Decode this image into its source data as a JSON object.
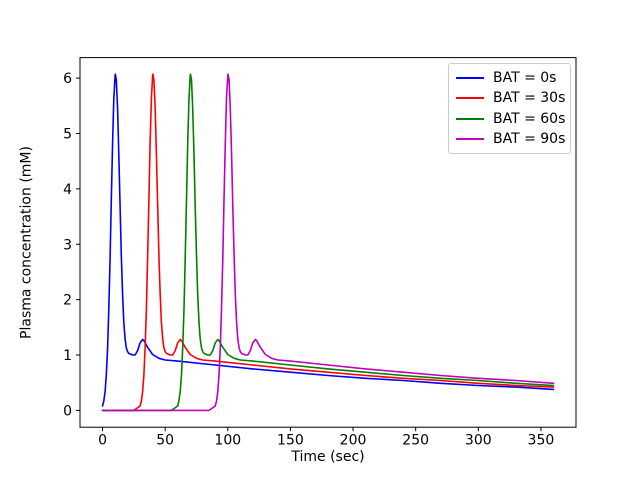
{
  "chart_data": {
    "type": "line",
    "title": "",
    "xlabel": "Time (sec)",
    "ylabel": "Plasma concentration (mM)",
    "xlim": [
      -18,
      378
    ],
    "ylim": [
      -0.3034,
      6.3704
    ],
    "xticks": [
      0,
      50,
      100,
      150,
      200,
      250,
      300,
      350
    ],
    "yticks": [
      0,
      1,
      2,
      3,
      4,
      5,
      6
    ],
    "grid": false,
    "legend": {
      "location": "upper right",
      "border_color": "#cccccc"
    },
    "axis_color": "#000000",
    "background": "#ffffff",
    "series": [
      {
        "name": "BAT = 0s",
        "color": "#0000ff",
        "shift_s": 0,
        "points": [
          [
            0,
            0.08
          ],
          [
            1,
            0.17
          ],
          [
            2,
            0.34
          ],
          [
            3,
            0.64
          ],
          [
            4,
            1.13
          ],
          [
            5,
            1.83
          ],
          [
            6,
            2.75
          ],
          [
            7,
            3.8
          ],
          [
            8,
            4.83
          ],
          [
            9,
            5.63
          ],
          [
            10,
            6.04
          ],
          [
            10.2,
            6.07
          ],
          [
            11,
            5.97
          ],
          [
            12,
            5.45
          ],
          [
            13,
            4.62
          ],
          [
            14,
            3.68
          ],
          [
            15,
            2.8
          ],
          [
            16,
            2.09
          ],
          [
            17,
            1.59
          ],
          [
            18,
            1.29
          ],
          [
            19,
            1.13
          ],
          [
            20,
            1.06
          ],
          [
            21,
            1.03
          ],
          [
            22,
            1.02
          ],
          [
            24,
            1.0
          ],
          [
            26,
            1.0
          ],
          [
            28,
            1.08
          ],
          [
            30,
            1.22
          ],
          [
            32,
            1.28
          ],
          [
            33,
            1.26
          ],
          [
            36,
            1.14
          ],
          [
            40,
            1.01
          ],
          [
            45,
            0.94
          ],
          [
            50,
            0.91
          ],
          [
            60,
            0.89
          ],
          [
            90,
            0.82
          ],
          [
            120,
            0.75
          ],
          [
            150,
            0.69
          ],
          [
            180,
            0.63
          ],
          [
            210,
            0.58
          ],
          [
            240,
            0.54
          ],
          [
            270,
            0.49
          ],
          [
            300,
            0.45
          ],
          [
            330,
            0.42
          ],
          [
            360,
            0.38
          ]
        ]
      },
      {
        "name": "BAT = 30s",
        "color": "#ff0000",
        "shift_s": 30,
        "points": [
          [
            0,
            0
          ],
          [
            25,
            0
          ],
          [
            30,
            0.08
          ],
          [
            31,
            0.17
          ],
          [
            32,
            0.34
          ],
          [
            33,
            0.64
          ],
          [
            34,
            1.13
          ],
          [
            35,
            1.83
          ],
          [
            36,
            2.75
          ],
          [
            37,
            3.8
          ],
          [
            38,
            4.83
          ],
          [
            39,
            5.63
          ],
          [
            40,
            6.04
          ],
          [
            40.2,
            6.07
          ],
          [
            41,
            5.97
          ],
          [
            42,
            5.45
          ],
          [
            43,
            4.62
          ],
          [
            44,
            3.68
          ],
          [
            45,
            2.8
          ],
          [
            46,
            2.09
          ],
          [
            47,
            1.59
          ],
          [
            48,
            1.29
          ],
          [
            49,
            1.13
          ],
          [
            50,
            1.06
          ],
          [
            51,
            1.03
          ],
          [
            52,
            1.02
          ],
          [
            54,
            1.0
          ],
          [
            56,
            1.0
          ],
          [
            58,
            1.08
          ],
          [
            60,
            1.22
          ],
          [
            62,
            1.28
          ],
          [
            63,
            1.26
          ],
          [
            66,
            1.14
          ],
          [
            70,
            1.01
          ],
          [
            75,
            0.94
          ],
          [
            80,
            0.91
          ],
          [
            90,
            0.89
          ],
          [
            120,
            0.82
          ],
          [
            150,
            0.75
          ],
          [
            180,
            0.69
          ],
          [
            210,
            0.63
          ],
          [
            240,
            0.58
          ],
          [
            270,
            0.54
          ],
          [
            300,
            0.49
          ],
          [
            330,
            0.45
          ],
          [
            360,
            0.42
          ]
        ]
      },
      {
        "name": "BAT = 60s",
        "color": "#008000",
        "shift_s": 60,
        "points": [
          [
            0,
            0
          ],
          [
            55,
            0
          ],
          [
            60,
            0.08
          ],
          [
            61,
            0.17
          ],
          [
            62,
            0.34
          ],
          [
            63,
            0.64
          ],
          [
            64,
            1.13
          ],
          [
            65,
            1.83
          ],
          [
            66,
            2.75
          ],
          [
            67,
            3.8
          ],
          [
            68,
            4.83
          ],
          [
            69,
            5.63
          ],
          [
            70,
            6.04
          ],
          [
            70.2,
            6.07
          ],
          [
            71,
            5.97
          ],
          [
            72,
            5.45
          ],
          [
            73,
            4.62
          ],
          [
            74,
            3.68
          ],
          [
            75,
            2.8
          ],
          [
            76,
            2.09
          ],
          [
            77,
            1.59
          ],
          [
            78,
            1.29
          ],
          [
            79,
            1.13
          ],
          [
            80,
            1.06
          ],
          [
            81,
            1.03
          ],
          [
            82,
            1.02
          ],
          [
            84,
            1.0
          ],
          [
            86,
            1.0
          ],
          [
            88,
            1.08
          ],
          [
            90,
            1.22
          ],
          [
            92,
            1.28
          ],
          [
            93,
            1.26
          ],
          [
            96,
            1.14
          ],
          [
            100,
            1.01
          ],
          [
            105,
            0.94
          ],
          [
            110,
            0.91
          ],
          [
            120,
            0.89
          ],
          [
            150,
            0.82
          ],
          [
            180,
            0.75
          ],
          [
            210,
            0.69
          ],
          [
            240,
            0.63
          ],
          [
            270,
            0.58
          ],
          [
            300,
            0.54
          ],
          [
            330,
            0.49
          ],
          [
            360,
            0.45
          ]
        ]
      },
      {
        "name": "BAT = 90s",
        "color": "#bf00bf",
        "shift_s": 90,
        "points": [
          [
            0,
            0
          ],
          [
            85,
            0
          ],
          [
            90,
            0.08
          ],
          [
            91,
            0.17
          ],
          [
            92,
            0.34
          ],
          [
            93,
            0.64
          ],
          [
            94,
            1.13
          ],
          [
            95,
            1.83
          ],
          [
            96,
            2.75
          ],
          [
            97,
            3.8
          ],
          [
            98,
            4.83
          ],
          [
            99,
            5.63
          ],
          [
            100,
            6.04
          ],
          [
            100.2,
            6.07
          ],
          [
            101,
            5.97
          ],
          [
            102,
            5.45
          ],
          [
            103,
            4.62
          ],
          [
            104,
            3.68
          ],
          [
            105,
            2.8
          ],
          [
            106,
            2.09
          ],
          [
            107,
            1.59
          ],
          [
            108,
            1.29
          ],
          [
            109,
            1.13
          ],
          [
            110,
            1.06
          ],
          [
            111,
            1.03
          ],
          [
            112,
            1.02
          ],
          [
            114,
            1.0
          ],
          [
            116,
            1.0
          ],
          [
            118,
            1.08
          ],
          [
            120,
            1.22
          ],
          [
            122,
            1.28
          ],
          [
            123,
            1.26
          ],
          [
            126,
            1.14
          ],
          [
            130,
            1.01
          ],
          [
            135,
            0.94
          ],
          [
            140,
            0.91
          ],
          [
            150,
            0.89
          ],
          [
            180,
            0.82
          ],
          [
            210,
            0.75
          ],
          [
            240,
            0.69
          ],
          [
            270,
            0.63
          ],
          [
            300,
            0.58
          ],
          [
            330,
            0.54
          ],
          [
            360,
            0.49
          ]
        ]
      }
    ]
  }
}
